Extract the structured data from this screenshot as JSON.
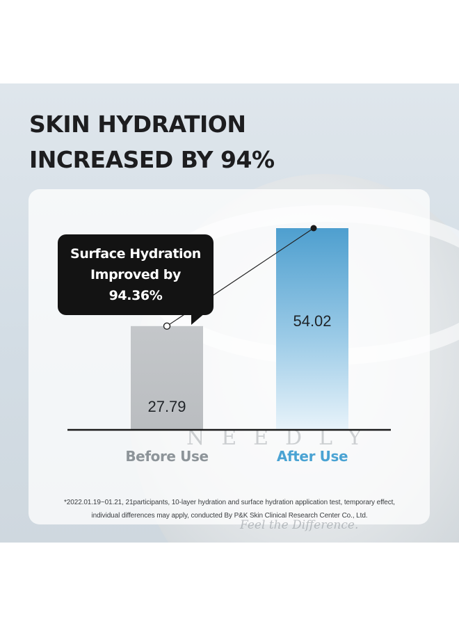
{
  "headline": {
    "line1": "SKIN HYDRATION",
    "line2": "INCREASED BY 94%"
  },
  "callout": {
    "text": "Surface Hydration\nImproved by\n94.36%"
  },
  "chart_data": {
    "type": "bar",
    "categories": [
      "Before Use",
      "After Use"
    ],
    "values": [
      27.79,
      54.02
    ],
    "value_labels": [
      "27.79",
      "54.02"
    ],
    "category_colors": [
      "#8d9499",
      "#4aa3d3"
    ],
    "bar_colors": [
      "#c0c3c6",
      "#5ba8d2"
    ],
    "trend_line": true,
    "grid": false,
    "title": "",
    "xlabel": "",
    "ylabel": ""
  },
  "watermark": {
    "brand": "NEEDLY",
    "tagline": "Feel the Difference."
  },
  "footnote": {
    "line1": "*2022.01.19~01.21, 21participants, 10-layer hydration and surface hydration application test, temporary effect,",
    "line2": "individual differences may apply, conducted By P&K Skin Clinical Research Center Co., Ltd."
  }
}
